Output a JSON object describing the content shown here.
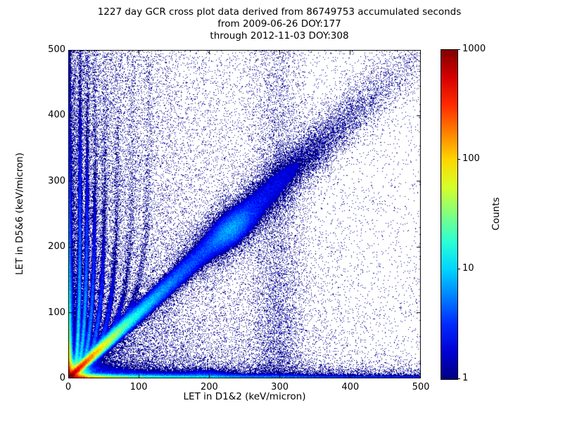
{
  "window": {
    "background": "#ffffff",
    "frame_color": "#000000",
    "text_color": "#000000"
  },
  "chart_data": {
    "type": "heatmap",
    "title": "1227 day GCR cross plot data derived from 86749753 accumulated seconds",
    "title_lines": [
      "1227 day GCR cross plot data derived from 86749753 accumulated seconds",
      "from 2009-06-26 DOY:177",
      "through 2012-11-03 DOY:308"
    ],
    "xlabel": "LET in D1&2 (keV/micron)",
    "ylabel": "LET in D5&6 (keV/micron)",
    "xlim": [
      0,
      500
    ],
    "ylim": [
      0,
      500
    ],
    "xticks": [
      0,
      100,
      200,
      300,
      400,
      500
    ],
    "yticks": [
      0,
      100,
      200,
      300,
      400,
      500
    ],
    "grid": false,
    "tick_direction": "in",
    "point_color_low": "#00008a",
    "colorbar": {
      "label": "Counts",
      "scale": "log",
      "min": 1,
      "max": 1000,
      "ticks": [
        1,
        10,
        100,
        1000
      ],
      "tick_labels": [
        "1",
        "10",
        "100",
        "1000"
      ],
      "colormap": "jet"
    },
    "density_model": {
      "seed": 20121103,
      "description": "count density in keV/micron coordinates; counts map through log10 jet colormap 1..1000",
      "features": [
        {
          "kind": "radial",
          "cx": 0,
          "cy": 0,
          "amp": 1300,
          "scale": 6.5,
          "pow": 1.1
        },
        {
          "kind": "diag_ridge",
          "amps": [
            900,
            40,
            2.2
          ],
          "scales": [
            18,
            60,
            180
          ],
          "w0": 2.5,
          "wslope": 0.05
        },
        {
          "kind": "cluster",
          "cx": 232,
          "cy": 227,
          "amp": 4.0,
          "su": 30,
          "sv": 15
        },
        {
          "kind": "cluster",
          "cx": 232,
          "cy": 227,
          "amp": 0.8,
          "su": 55,
          "sv": 30
        },
        {
          "kind": "hband",
          "amps": [
            500,
            90,
            10,
            3.5
          ],
          "scales": [
            16,
            60,
            160,
            900
          ],
          "sy": 4
        },
        {
          "kind": "hband",
          "amps": [
            1.6
          ],
          "scales": [
            450
          ],
          "sy": 14
        },
        {
          "kind": "hband",
          "amps": [
            0.35
          ],
          "scales": [
            600
          ],
          "sy": 26
        },
        {
          "kind": "hband_gauss",
          "cx": 195,
          "sx": 30,
          "amp": 2.2,
          "sy": 10
        },
        {
          "kind": "vband_edge",
          "amps": [
            400,
            70,
            7,
            1.5
          ],
          "scales": [
            16,
            60,
            160,
            600
          ],
          "sx": 3.5
        },
        {
          "kind": "vband_edge",
          "amps": [
            0.9
          ],
          "scales": [
            350
          ],
          "sx": 10
        },
        {
          "kind": "diffuse",
          "amp": 1.1,
          "sx": 55,
          "sy": 500
        },
        {
          "kind": "diffuse",
          "amp": 0.4,
          "sx": 200,
          "sy": 800
        },
        {
          "kind": "triangle",
          "amp": 0.8,
          "sx": 170,
          "sy": 60
        },
        {
          "kind": "diag_diffuse",
          "amp": 0.85,
          "w0": 9,
          "wslope": 0.09,
          "sscale": 150
        },
        {
          "kind": "diag_blob",
          "amp": 0.9,
          "wd": 26,
          "s0": 280,
          "ss": 130
        },
        {
          "kind": "vband",
          "cx": 297,
          "sx": 30,
          "amp": 0.5,
          "sy": 600
        },
        {
          "kind": "streak",
          "xa": 17,
          "s0": 10,
          "amp": 16,
          "L": 150,
          "w": 2.2
        },
        {
          "kind": "streak",
          "xa": 27,
          "s0": 15,
          "amp": 12,
          "L": 140,
          "w": 2.4
        },
        {
          "kind": "streak",
          "xa": 38,
          "s0": 22,
          "amp": 8,
          "L": 130,
          "w": 2.6
        },
        {
          "kind": "streak",
          "xa": 52,
          "s0": 30,
          "amp": 5,
          "L": 130,
          "w": 3.0
        },
        {
          "kind": "streak",
          "xa": 70,
          "s0": 40,
          "amp": 3.2,
          "L": 130,
          "w": 3.4
        },
        {
          "kind": "streak",
          "xa": 92,
          "s0": 52,
          "amp": 2.0,
          "L": 140,
          "w": 4.0
        },
        {
          "kind": "streak",
          "xa": 115,
          "s0": 65,
          "amp": 1.5,
          "L": 150,
          "w": 4.5
        },
        {
          "kind": "uniform",
          "amp": 0.012
        }
      ]
    }
  }
}
